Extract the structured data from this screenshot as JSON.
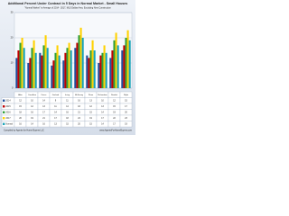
{
  "chart_data": {
    "type": "bar",
    "title": "Additional Percent Under Contract in 5 Days in Normal Market - Small Houses",
    "subtitle": "\"Normal Market\" is Average of 2014 - 2017, MLS Dallas Area, Excluding New Construction",
    "footer_left": "Compiled by Agents for Home Buyers LLC",
    "footer_right": "www.AgentsForHomeBuyers.com",
    "categories": [
      "Allen",
      "Carrollton",
      "Frisco",
      "Garland",
      "Irving",
      "McKinney",
      "Plano",
      "Richardson",
      "Rowlett",
      "Wylie"
    ],
    "series": [
      {
        "name": "2014",
        "color": "#1f4e9c",
        "values": [
          12,
          10,
          14,
          9,
          11,
          16,
          13,
          10,
          12,
          15
        ]
      },
      {
        "name": "2015",
        "color": "#c00000",
        "values": [
          15,
          12,
          13,
          11,
          14,
          18,
          12,
          13,
          15,
          17
        ]
      },
      {
        "name": "2016",
        "color": "#2e9e3a",
        "values": [
          18,
          16,
          17,
          14,
          16,
          21,
          15,
          14,
          19,
          20
        ]
      },
      {
        "name": "2017",
        "color": "#ffd200",
        "values": [
          20,
          19,
          21,
          17,
          18,
          24,
          19,
          17,
          22,
          23
        ]
      },
      {
        "name": "Normal",
        "color": "#17a2b8",
        "values": [
          16,
          14,
          16,
          13,
          15,
          20,
          15,
          14,
          17,
          19
        ]
      }
    ],
    "ylim": [
      0,
      30
    ],
    "yticks": [
      0,
      10,
      20,
      30
    ],
    "grid": true
  }
}
